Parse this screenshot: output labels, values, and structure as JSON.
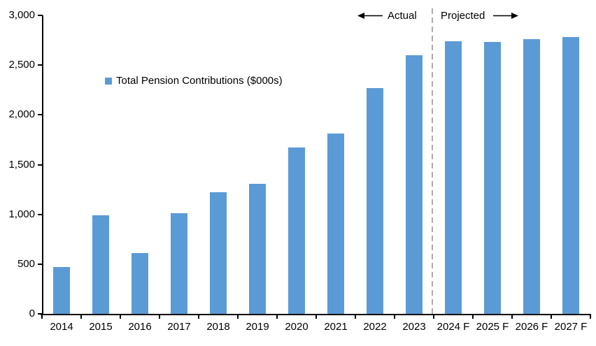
{
  "colors": {
    "bar": "#5B9BD5",
    "axis": "#000000",
    "divider": "#ABABAB",
    "text": "#000000"
  },
  "legend": {
    "label": "Total Pension Contributions ($000s)"
  },
  "annotations": {
    "actual_label": "Actual",
    "projected_label": "Projected"
  },
  "chart_data": {
    "type": "bar",
    "title": "",
    "series_name": "Total Pension Contributions ($000s)",
    "categories": [
      "2014",
      "2015",
      "2016",
      "2017",
      "2018",
      "2019",
      "2020",
      "2021",
      "2022",
      "2023",
      "2024 F",
      "2025 F",
      "2026 F",
      "2027 F"
    ],
    "values": [
      470,
      990,
      610,
      1010,
      1220,
      1310,
      1670,
      1810,
      2270,
      2600,
      2740,
      2730,
      2760,
      2780
    ],
    "xlabel": "",
    "ylabel": "",
    "ylim": [
      0,
      3000
    ],
    "ytick_interval": 500,
    "ytick_labels": [
      "0",
      "500",
      "1,000",
      "1,500",
      "2,000",
      "2,500",
      "3,000"
    ],
    "grid": false,
    "legend_position": "inside-upper-left",
    "divider": {
      "between": [
        "2023",
        "2024 F"
      ],
      "left_zone_label": "Actual",
      "right_zone_label": "Projected"
    }
  }
}
